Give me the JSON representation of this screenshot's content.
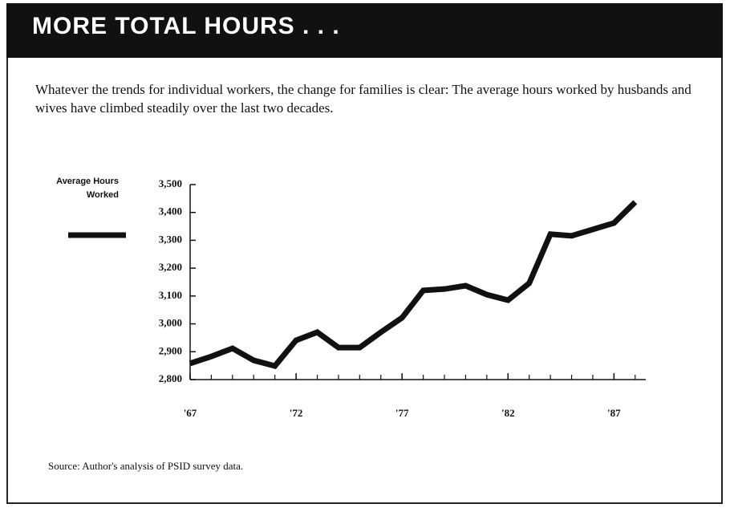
{
  "chart_data": {
    "type": "line",
    "title": "MORE TOTAL HOURS . . .",
    "subtitle": "Whatever the trends for individual workers, the change for families is clear: The average hours worked by husbands and wives have climbed steadily over the last two decades.",
    "source": "Source: Author's analysis of PSID survey data.",
    "x": [
      1967,
      1968,
      1969,
      1970,
      1971,
      1972,
      1973,
      1974,
      1975,
      1976,
      1977,
      1978,
      1979,
      1980,
      1981,
      1982,
      1983,
      1984,
      1985,
      1986,
      1987,
      1988
    ],
    "series": [
      {
        "name": "Average Hours Worked",
        "color": "#111111",
        "values": [
          2858,
          2883,
          2912,
          2869,
          2849,
          2941,
          2970,
          2915,
          2915,
          2970,
          3022,
          3120,
          3125,
          3137,
          3105,
          3085,
          3146,
          3322,
          3316,
          3339,
          3362,
          3437
        ]
      }
    ],
    "xlim": [
      1967,
      1988.5
    ],
    "xticks": [
      {
        "value": 1967,
        "label": "'67"
      },
      {
        "value": 1972,
        "label": "'72"
      },
      {
        "value": 1977,
        "label": "'77"
      },
      {
        "value": 1982,
        "label": "'82"
      },
      {
        "value": 1987,
        "label": "'87"
      }
    ],
    "ylim": [
      2800,
      3500
    ],
    "yticks": [
      {
        "value": 2800,
        "label": "2,800"
      },
      {
        "value": 2900,
        "label": "2,900"
      },
      {
        "value": 3000,
        "label": "3,000"
      },
      {
        "value": 3100,
        "label": "3,100"
      },
      {
        "value": 3200,
        "label": "3,200"
      },
      {
        "value": 3300,
        "label": "3,300"
      },
      {
        "value": 3400,
        "label": "3,400"
      },
      {
        "value": 3500,
        "label": "3,500"
      }
    ],
    "grid": false
  }
}
